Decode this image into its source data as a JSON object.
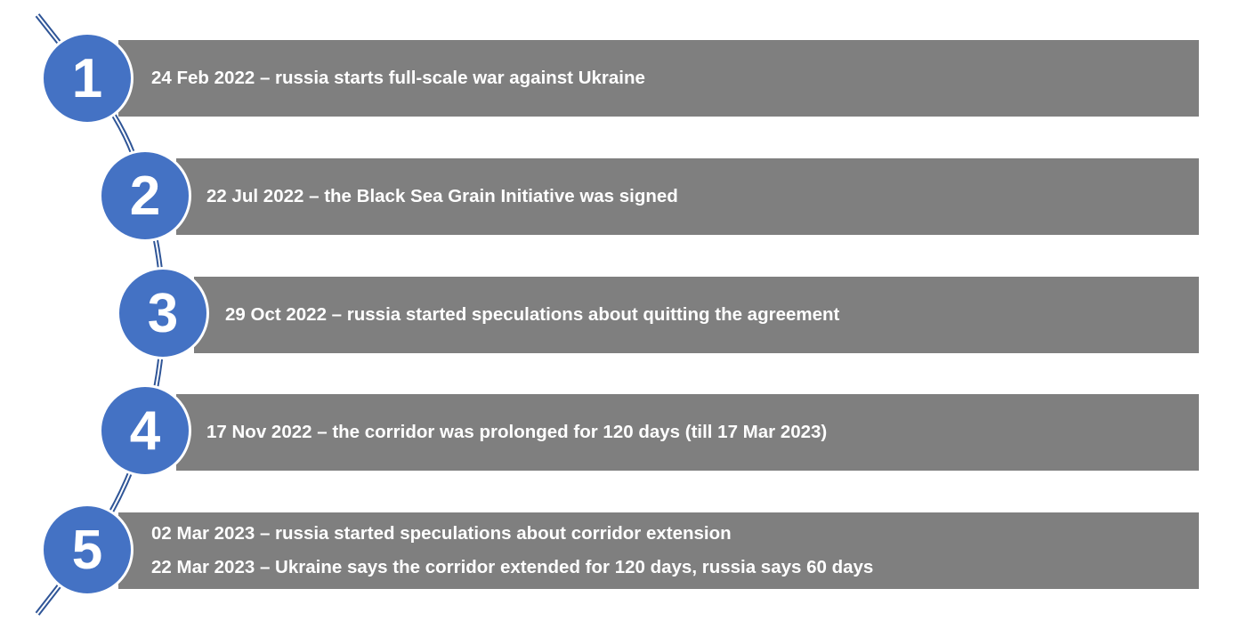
{
  "colors": {
    "circle": "#4472c4",
    "bar": "#7f7f7f",
    "connector": "#2f5597",
    "text": "#ffffff"
  },
  "events": [
    {
      "number": "1",
      "lines": [
        "24 Feb 2022 – russia starts full-scale war against Ukraine"
      ]
    },
    {
      "number": "2",
      "lines": [
        "22 Jul 2022 – the Black Sea Grain Initiative was signed"
      ]
    },
    {
      "number": "3",
      "lines": [
        "29 Oct 2022 – russia started speculations about quitting the agreement"
      ]
    },
    {
      "number": "4",
      "lines": [
        "17 Nov 2022 – the corridor was prolonged for 120 days (till 17 Mar 2023)"
      ]
    },
    {
      "number": "5",
      "lines": [
        "02 Mar 2023 – russia started speculations about corridor extension",
        "22 Mar 2023 – Ukraine says the corridor extended for 120 days, russia says 60 days"
      ]
    }
  ]
}
